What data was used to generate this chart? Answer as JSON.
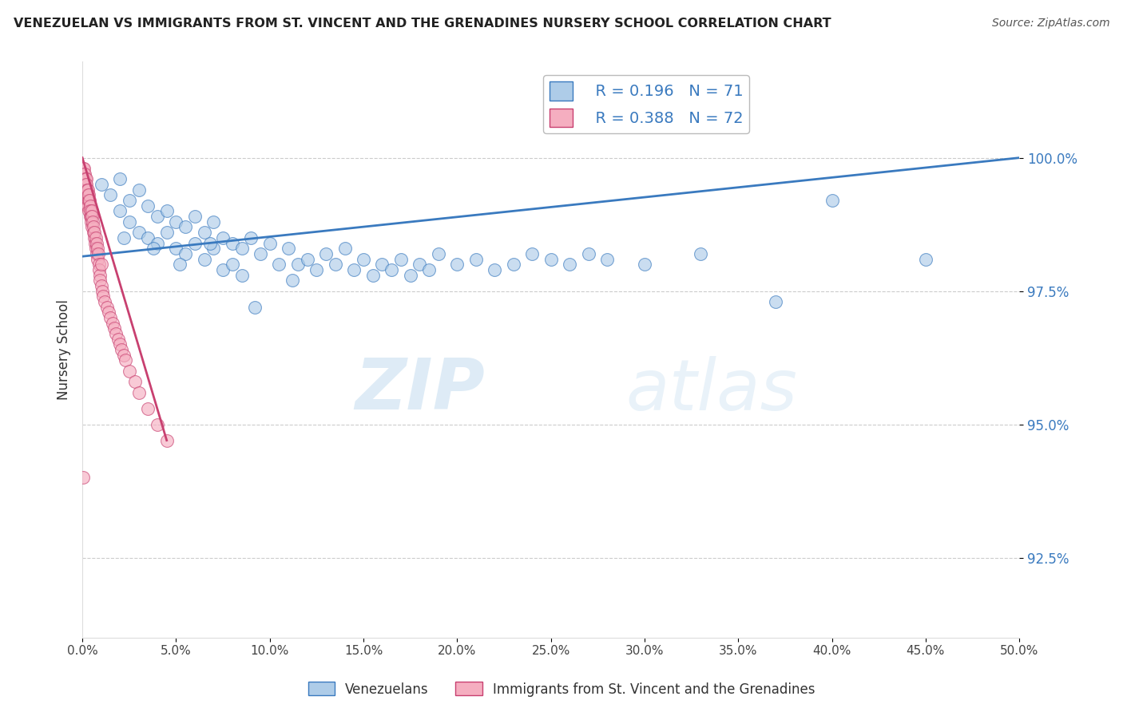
{
  "title": "VENEZUELAN VS IMMIGRANTS FROM ST. VINCENT AND THE GRENADINES NURSERY SCHOOL CORRELATION CHART",
  "source": "Source: ZipAtlas.com",
  "ylabel": "Nursery School",
  "yticks": [
    92.5,
    95.0,
    97.5,
    100.0
  ],
  "ytick_labels": [
    "92.5%",
    "95.0%",
    "97.5%",
    "100.0%"
  ],
  "xlim": [
    0.0,
    50.0
  ],
  "ylim": [
    91.0,
    101.8
  ],
  "blue_R": 0.196,
  "blue_N": 71,
  "pink_R": 0.388,
  "pink_N": 72,
  "blue_color": "#aecce8",
  "pink_color": "#f5aec0",
  "blue_line_color": "#3a7abf",
  "pink_line_color": "#c84070",
  "legend_label_blue": "Venezuelans",
  "legend_label_pink": "Immigrants from St. Vincent and the Grenadines",
  "watermark_zip": "ZIP",
  "watermark_atlas": "atlas",
  "blue_scatter_x": [
    1.0,
    1.5,
    2.0,
    2.0,
    2.5,
    2.5,
    3.0,
    3.0,
    3.5,
    3.5,
    4.0,
    4.0,
    4.5,
    4.5,
    5.0,
    5.0,
    5.5,
    5.5,
    6.0,
    6.0,
    6.5,
    6.5,
    7.0,
    7.0,
    7.5,
    7.5,
    8.0,
    8.0,
    8.5,
    8.5,
    9.0,
    9.5,
    10.0,
    10.5,
    11.0,
    11.5,
    12.0,
    12.5,
    13.0,
    13.5,
    14.0,
    14.5,
    15.0,
    15.5,
    16.0,
    16.5,
    17.0,
    17.5,
    18.0,
    18.5,
    19.0,
    20.0,
    21.0,
    22.0,
    23.0,
    24.0,
    25.0,
    26.0,
    27.0,
    28.0,
    30.0,
    33.0,
    37.0,
    40.0,
    45.0,
    2.2,
    3.8,
    5.2,
    6.8,
    9.2,
    11.2
  ],
  "blue_scatter_y": [
    99.5,
    99.3,
    99.6,
    99.0,
    99.2,
    98.8,
    99.4,
    98.6,
    99.1,
    98.5,
    98.9,
    98.4,
    99.0,
    98.6,
    98.8,
    98.3,
    98.7,
    98.2,
    98.9,
    98.4,
    98.6,
    98.1,
    98.8,
    98.3,
    98.5,
    97.9,
    98.4,
    98.0,
    98.3,
    97.8,
    98.5,
    98.2,
    98.4,
    98.0,
    98.3,
    98.0,
    98.1,
    97.9,
    98.2,
    98.0,
    98.3,
    97.9,
    98.1,
    97.8,
    98.0,
    97.9,
    98.1,
    97.8,
    98.0,
    97.9,
    98.2,
    98.0,
    98.1,
    97.9,
    98.0,
    98.2,
    98.1,
    98.0,
    98.2,
    98.1,
    98.0,
    98.2,
    97.3,
    99.2,
    98.1,
    98.5,
    98.3,
    98.0,
    98.4,
    97.2,
    97.7
  ],
  "pink_scatter_x": [
    0.05,
    0.05,
    0.08,
    0.08,
    0.1,
    0.1,
    0.12,
    0.12,
    0.15,
    0.15,
    0.18,
    0.18,
    0.2,
    0.2,
    0.22,
    0.25,
    0.25,
    0.28,
    0.3,
    0.3,
    0.32,
    0.35,
    0.35,
    0.38,
    0.4,
    0.4,
    0.42,
    0.45,
    0.48,
    0.5,
    0.5,
    0.52,
    0.55,
    0.58,
    0.6,
    0.62,
    0.65,
    0.68,
    0.7,
    0.7,
    0.75,
    0.78,
    0.8,
    0.82,
    0.85,
    0.88,
    0.9,
    0.92,
    0.95,
    1.0,
    1.0,
    1.05,
    1.1,
    1.2,
    1.3,
    1.4,
    1.5,
    1.6,
    1.7,
    1.8,
    1.9,
    2.0,
    2.1,
    2.2,
    2.3,
    2.5,
    2.8,
    3.0,
    3.5,
    4.0,
    4.5,
    0.05
  ],
  "pink_scatter_y": [
    99.8,
    99.6,
    99.7,
    99.5,
    99.8,
    99.6,
    99.7,
    99.4,
    99.6,
    99.3,
    99.5,
    99.2,
    99.6,
    99.3,
    99.5,
    99.4,
    99.1,
    99.3,
    99.4,
    99.1,
    99.2,
    99.3,
    99.0,
    99.2,
    99.1,
    98.9,
    99.0,
    98.9,
    98.8,
    99.0,
    98.7,
    98.9,
    98.8,
    98.6,
    98.7,
    98.5,
    98.6,
    98.4,
    98.5,
    98.3,
    98.4,
    98.2,
    98.3,
    98.1,
    98.2,
    98.0,
    97.9,
    97.8,
    97.7,
    98.0,
    97.6,
    97.5,
    97.4,
    97.3,
    97.2,
    97.1,
    97.0,
    96.9,
    96.8,
    96.7,
    96.6,
    96.5,
    96.4,
    96.3,
    96.2,
    96.0,
    95.8,
    95.6,
    95.3,
    95.0,
    94.7,
    94.0
  ],
  "blue_trendline_x": [
    0.0,
    50.0
  ],
  "blue_trendline_y": [
    98.15,
    100.0
  ],
  "pink_trendline_x": [
    0.0,
    4.5
  ],
  "pink_trendline_y": [
    100.0,
    94.7
  ]
}
